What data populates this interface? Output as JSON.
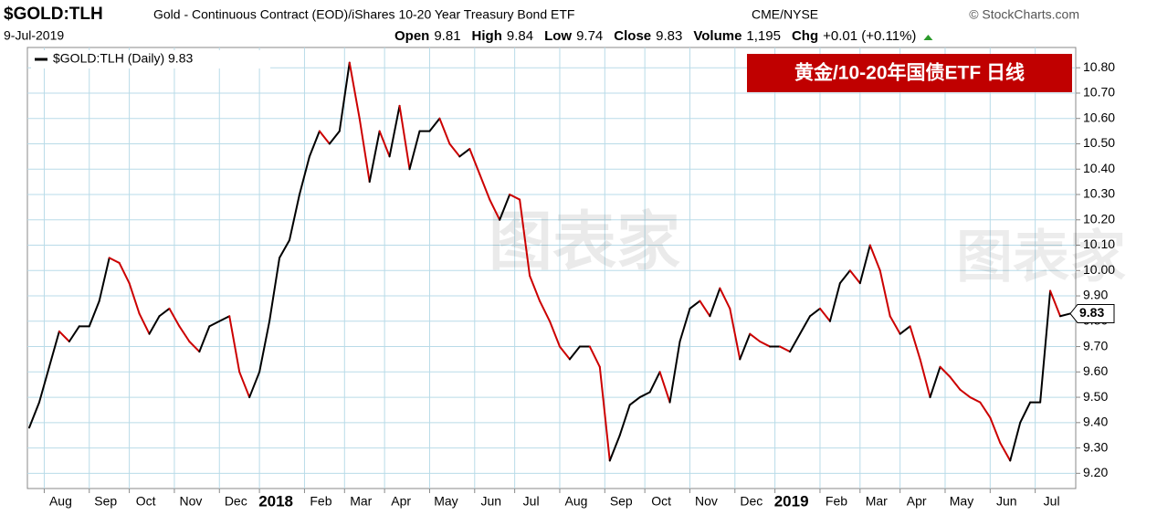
{
  "chart_data": {
    "type": "line",
    "title": "$GOLD:TLH",
    "subtitle": "Gold - Continuous Contract (EOD)/iShares 10-20 Year Treasury Bond ETF",
    "exchange": "CME/NYSE",
    "source": "© StockCharts.com",
    "date": "9-Jul-2019",
    "quote": [
      {
        "label": "Open",
        "value": "9.81"
      },
      {
        "label": "High",
        "value": "9.84"
      },
      {
        "label": "Low",
        "value": "9.74"
      },
      {
        "label": "Close",
        "value": "9.83"
      },
      {
        "label": "Volume",
        "value": "1,195"
      },
      {
        "label": "Chg",
        "value": "+0.01 (+0.11%)"
      }
    ],
    "legend": "$GOLD:TLH (Daily) 9.83",
    "annotation": "黄金/10-20年国债ETF  日线",
    "watermark": "图表家",
    "last_value": 9.83,
    "up_color": "#000000",
    "down_color": "#cc0000",
    "series": [
      {
        "name": "$GOLD:TLH",
        "values": [
          9.38,
          9.48,
          9.62,
          9.76,
          9.72,
          9.78,
          9.78,
          9.88,
          10.05,
          10.03,
          9.95,
          9.83,
          9.75,
          9.82,
          9.85,
          9.78,
          9.72,
          9.68,
          9.78,
          9.8,
          9.82,
          9.6,
          9.5,
          9.6,
          9.8,
          10.05,
          10.12,
          10.3,
          10.45,
          10.55,
          10.5,
          10.55,
          10.82,
          10.6,
          10.35,
          10.55,
          10.45,
          10.65,
          10.4,
          10.55,
          10.55,
          10.6,
          10.5,
          10.45,
          10.48,
          10.38,
          10.28,
          10.2,
          10.3,
          10.28,
          9.98,
          9.88,
          9.8,
          9.7,
          9.65,
          9.7,
          9.7,
          9.62,
          9.25,
          9.35,
          9.47,
          9.5,
          9.52,
          9.6,
          9.48,
          9.72,
          9.85,
          9.88,
          9.82,
          9.93,
          9.85,
          9.65,
          9.75,
          9.72,
          9.7,
          9.7,
          9.68,
          9.75,
          9.82,
          9.85,
          9.8,
          9.95,
          10.0,
          9.95,
          10.1,
          10.0,
          9.82,
          9.75,
          9.78,
          9.65,
          9.5,
          9.62,
          9.58,
          9.53,
          9.5,
          9.48,
          9.42,
          9.32,
          9.25,
          9.4,
          9.48,
          9.48,
          9.92,
          9.82,
          9.83
        ]
      }
    ],
    "xlim": [
      0,
      104
    ],
    "xticks": [
      {
        "value": 1.5,
        "label": "Aug"
      },
      {
        "value": 6,
        "label": "Sep"
      },
      {
        "value": 10,
        "label": "Oct"
      },
      {
        "value": 14.5,
        "label": "Nov"
      },
      {
        "value": 19,
        "label": "Dec"
      },
      {
        "value": 23,
        "label": "2018"
      },
      {
        "value": 27.5,
        "label": "Feb"
      },
      {
        "value": 31.5,
        "label": "Mar"
      },
      {
        "value": 35.5,
        "label": "Apr"
      },
      {
        "value": 40,
        "label": "May"
      },
      {
        "value": 44.5,
        "label": "Jun"
      },
      {
        "value": 48.5,
        "label": "Jul"
      },
      {
        "value": 53,
        "label": "Aug"
      },
      {
        "value": 57.5,
        "label": "Sep"
      },
      {
        "value": 61.5,
        "label": "Oct"
      },
      {
        "value": 66,
        "label": "Nov"
      },
      {
        "value": 70.5,
        "label": "Dec"
      },
      {
        "value": 74.5,
        "label": "2019"
      },
      {
        "value": 79,
        "label": "Feb"
      },
      {
        "value": 83,
        "label": "Mar"
      },
      {
        "value": 87,
        "label": "Apr"
      },
      {
        "value": 91.5,
        "label": "May"
      },
      {
        "value": 96,
        "label": "Jun"
      },
      {
        "value": 100.5,
        "label": "Jul"
      }
    ],
    "ylim": [
      9.14,
      10.88
    ],
    "yticks": [
      {
        "value": 9.2,
        "label": "9.20"
      },
      {
        "value": 9.3,
        "label": "9.30"
      },
      {
        "value": 9.4,
        "label": "9.40"
      },
      {
        "value": 9.5,
        "label": "9.50"
      },
      {
        "value": 9.6,
        "label": "9.60"
      },
      {
        "value": 9.7,
        "label": "9.70"
      },
      {
        "value": 9.8,
        "label": "9.80"
      },
      {
        "value": 9.9,
        "label": "9.90"
      },
      {
        "value": 10.0,
        "label": "10.00"
      },
      {
        "value": 10.1,
        "label": "10.10"
      },
      {
        "value": 10.2,
        "label": "10.20"
      },
      {
        "value": 10.3,
        "label": "10.30"
      },
      {
        "value": 10.4,
        "label": "10.40"
      },
      {
        "value": 10.5,
        "label": "10.50"
      },
      {
        "value": 10.6,
        "label": "10.60"
      },
      {
        "value": 10.7,
        "label": "10.70"
      },
      {
        "value": 10.8,
        "label": "10.80"
      }
    ],
    "grid": true
  }
}
